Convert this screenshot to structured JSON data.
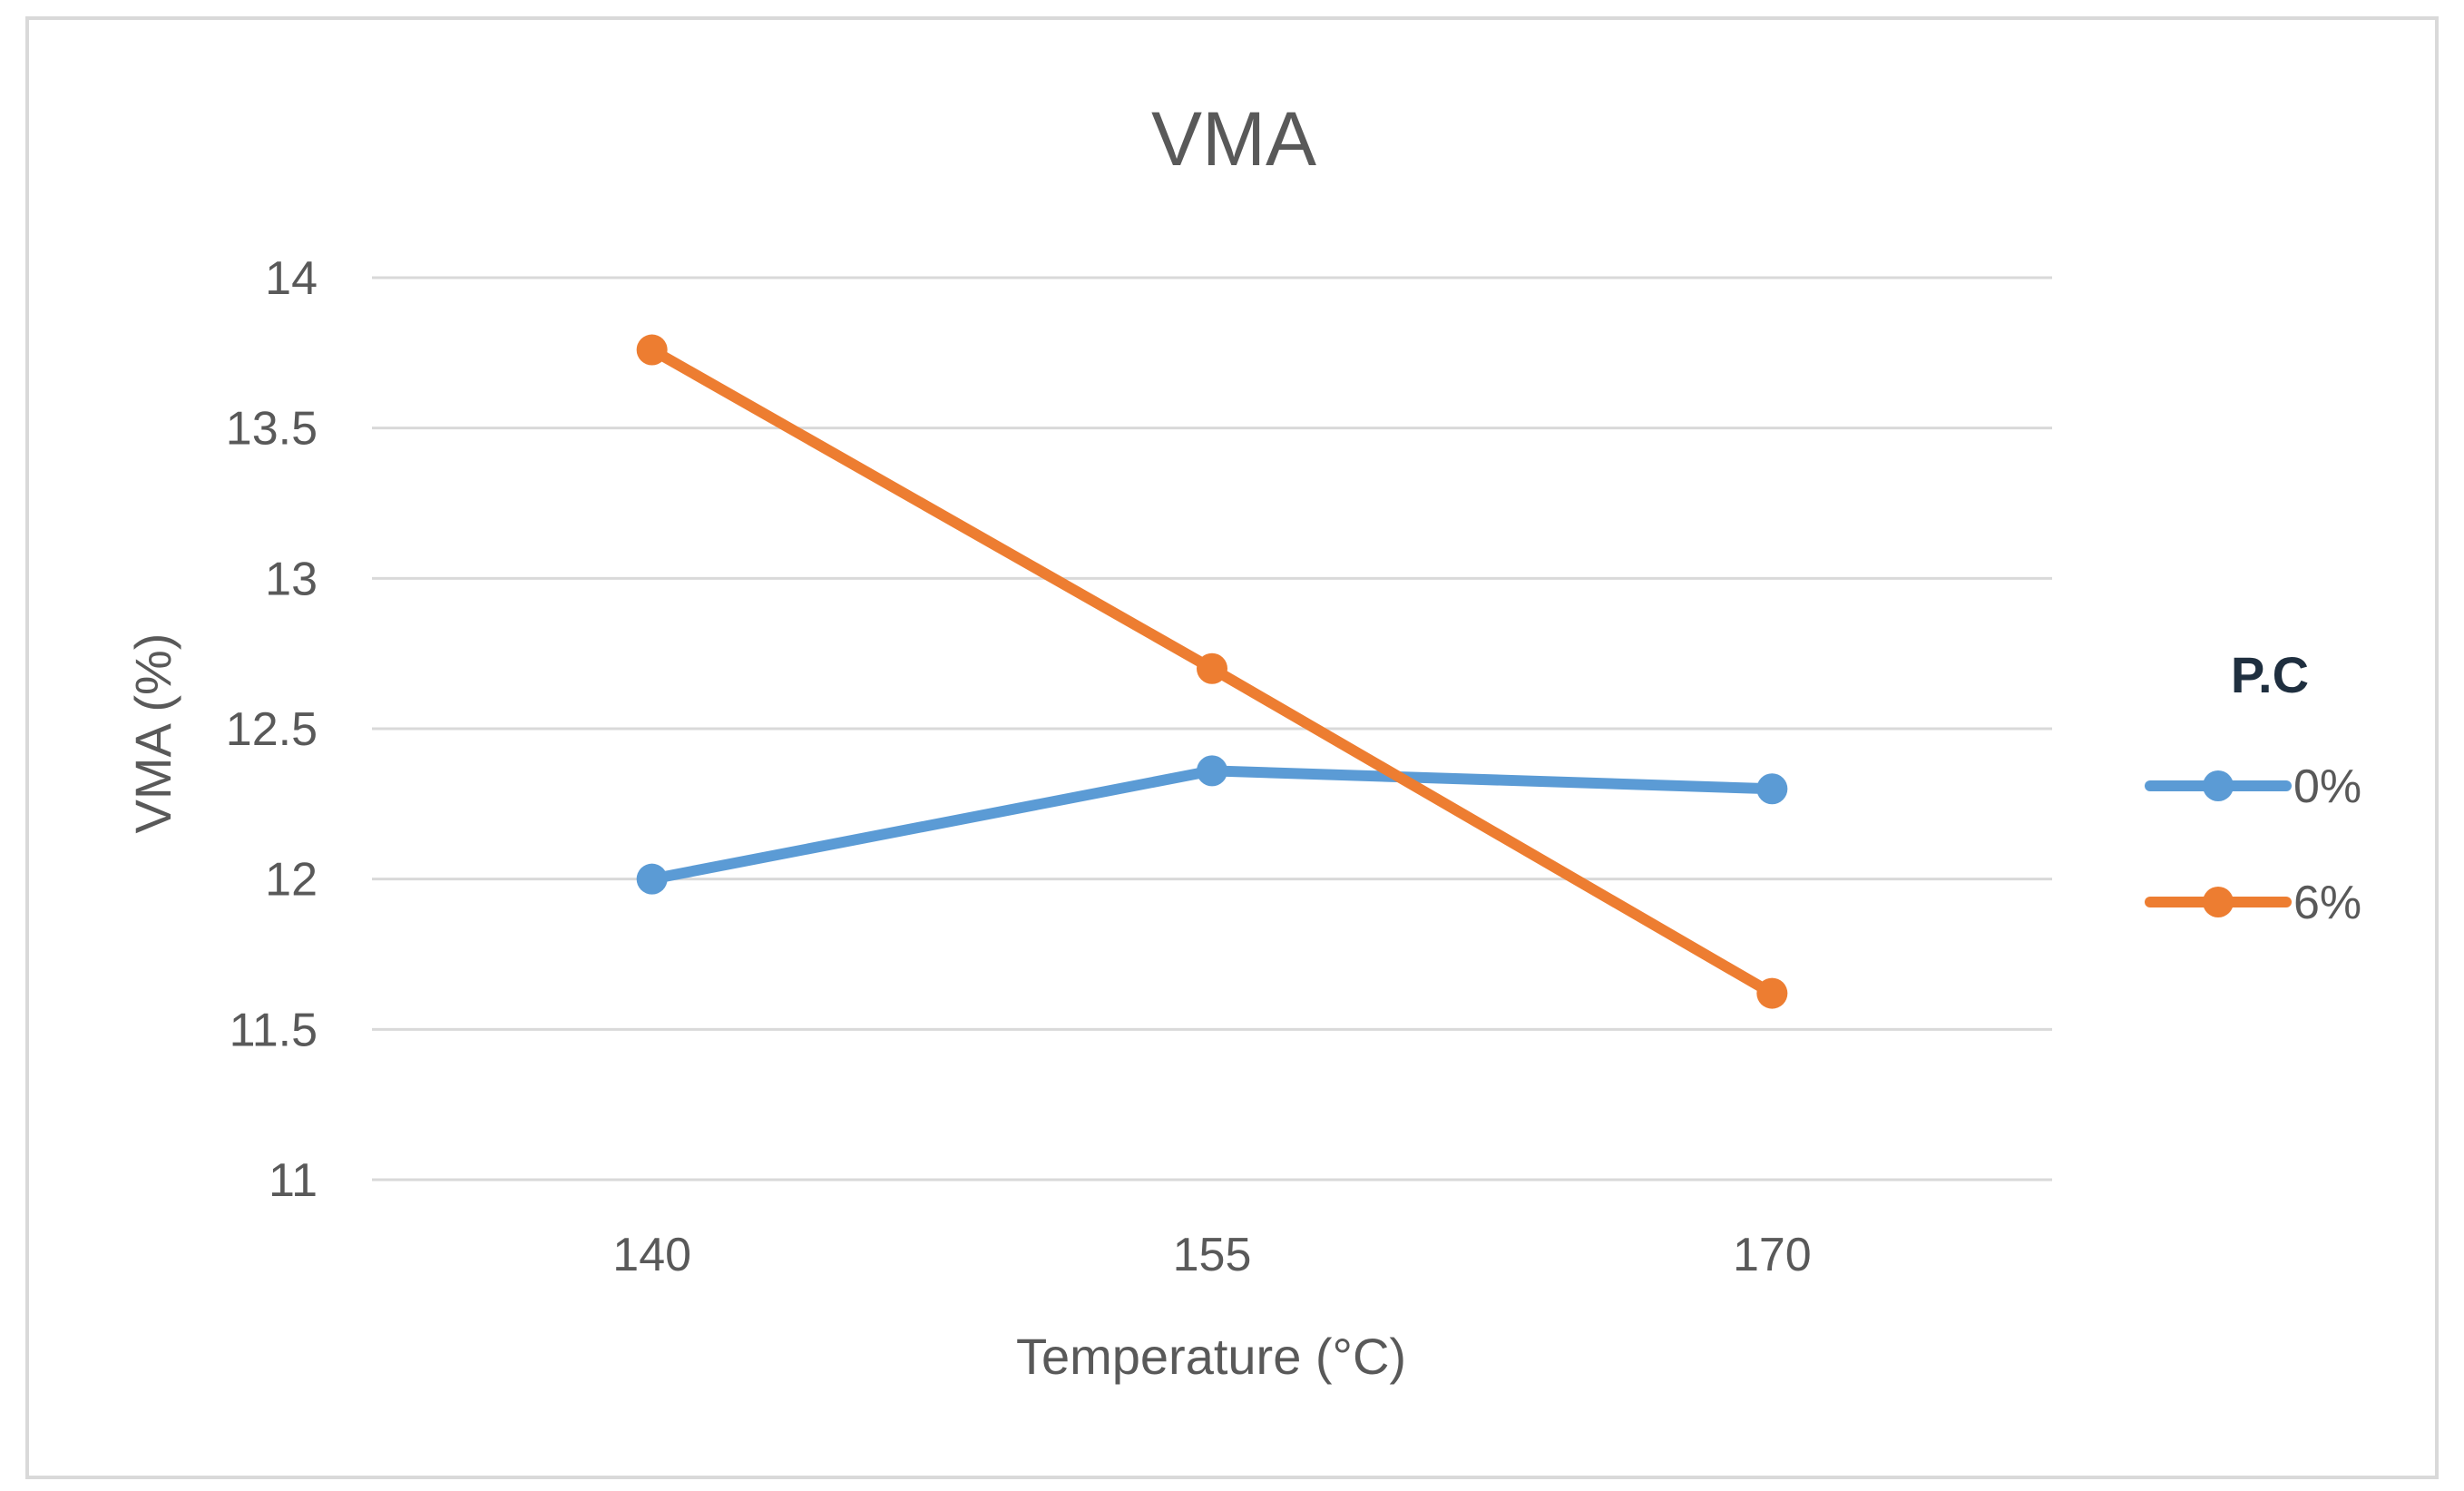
{
  "chart_data": {
    "type": "line",
    "title": "VMA",
    "xlabel": "Temperature (°C)",
    "ylabel": "VMA (%)",
    "categories": [
      "140",
      "155",
      "170"
    ],
    "ylim": [
      11,
      14
    ],
    "yticks": [
      "11",
      "11.5",
      "12",
      "12.5",
      "13",
      "13.5",
      "14"
    ],
    "ytick_values": [
      11,
      11.5,
      12,
      12.5,
      13,
      13.5,
      14
    ],
    "grid": true,
    "legend_title": "P.C",
    "legend_position": "right",
    "series": [
      {
        "name": "0%",
        "values": [
          12.0,
          12.36,
          12.3
        ],
        "color": "#5B9BD5"
      },
      {
        "name": "6%",
        "values": [
          13.76,
          12.7,
          11.62
        ],
        "color": "#ED7D31"
      }
    ]
  },
  "style": {
    "gridline_color": "#d9d9d9",
    "frame_color": "#d9d9d9",
    "text_color": "#595959",
    "legend_title_color": "#1f2f3f"
  }
}
